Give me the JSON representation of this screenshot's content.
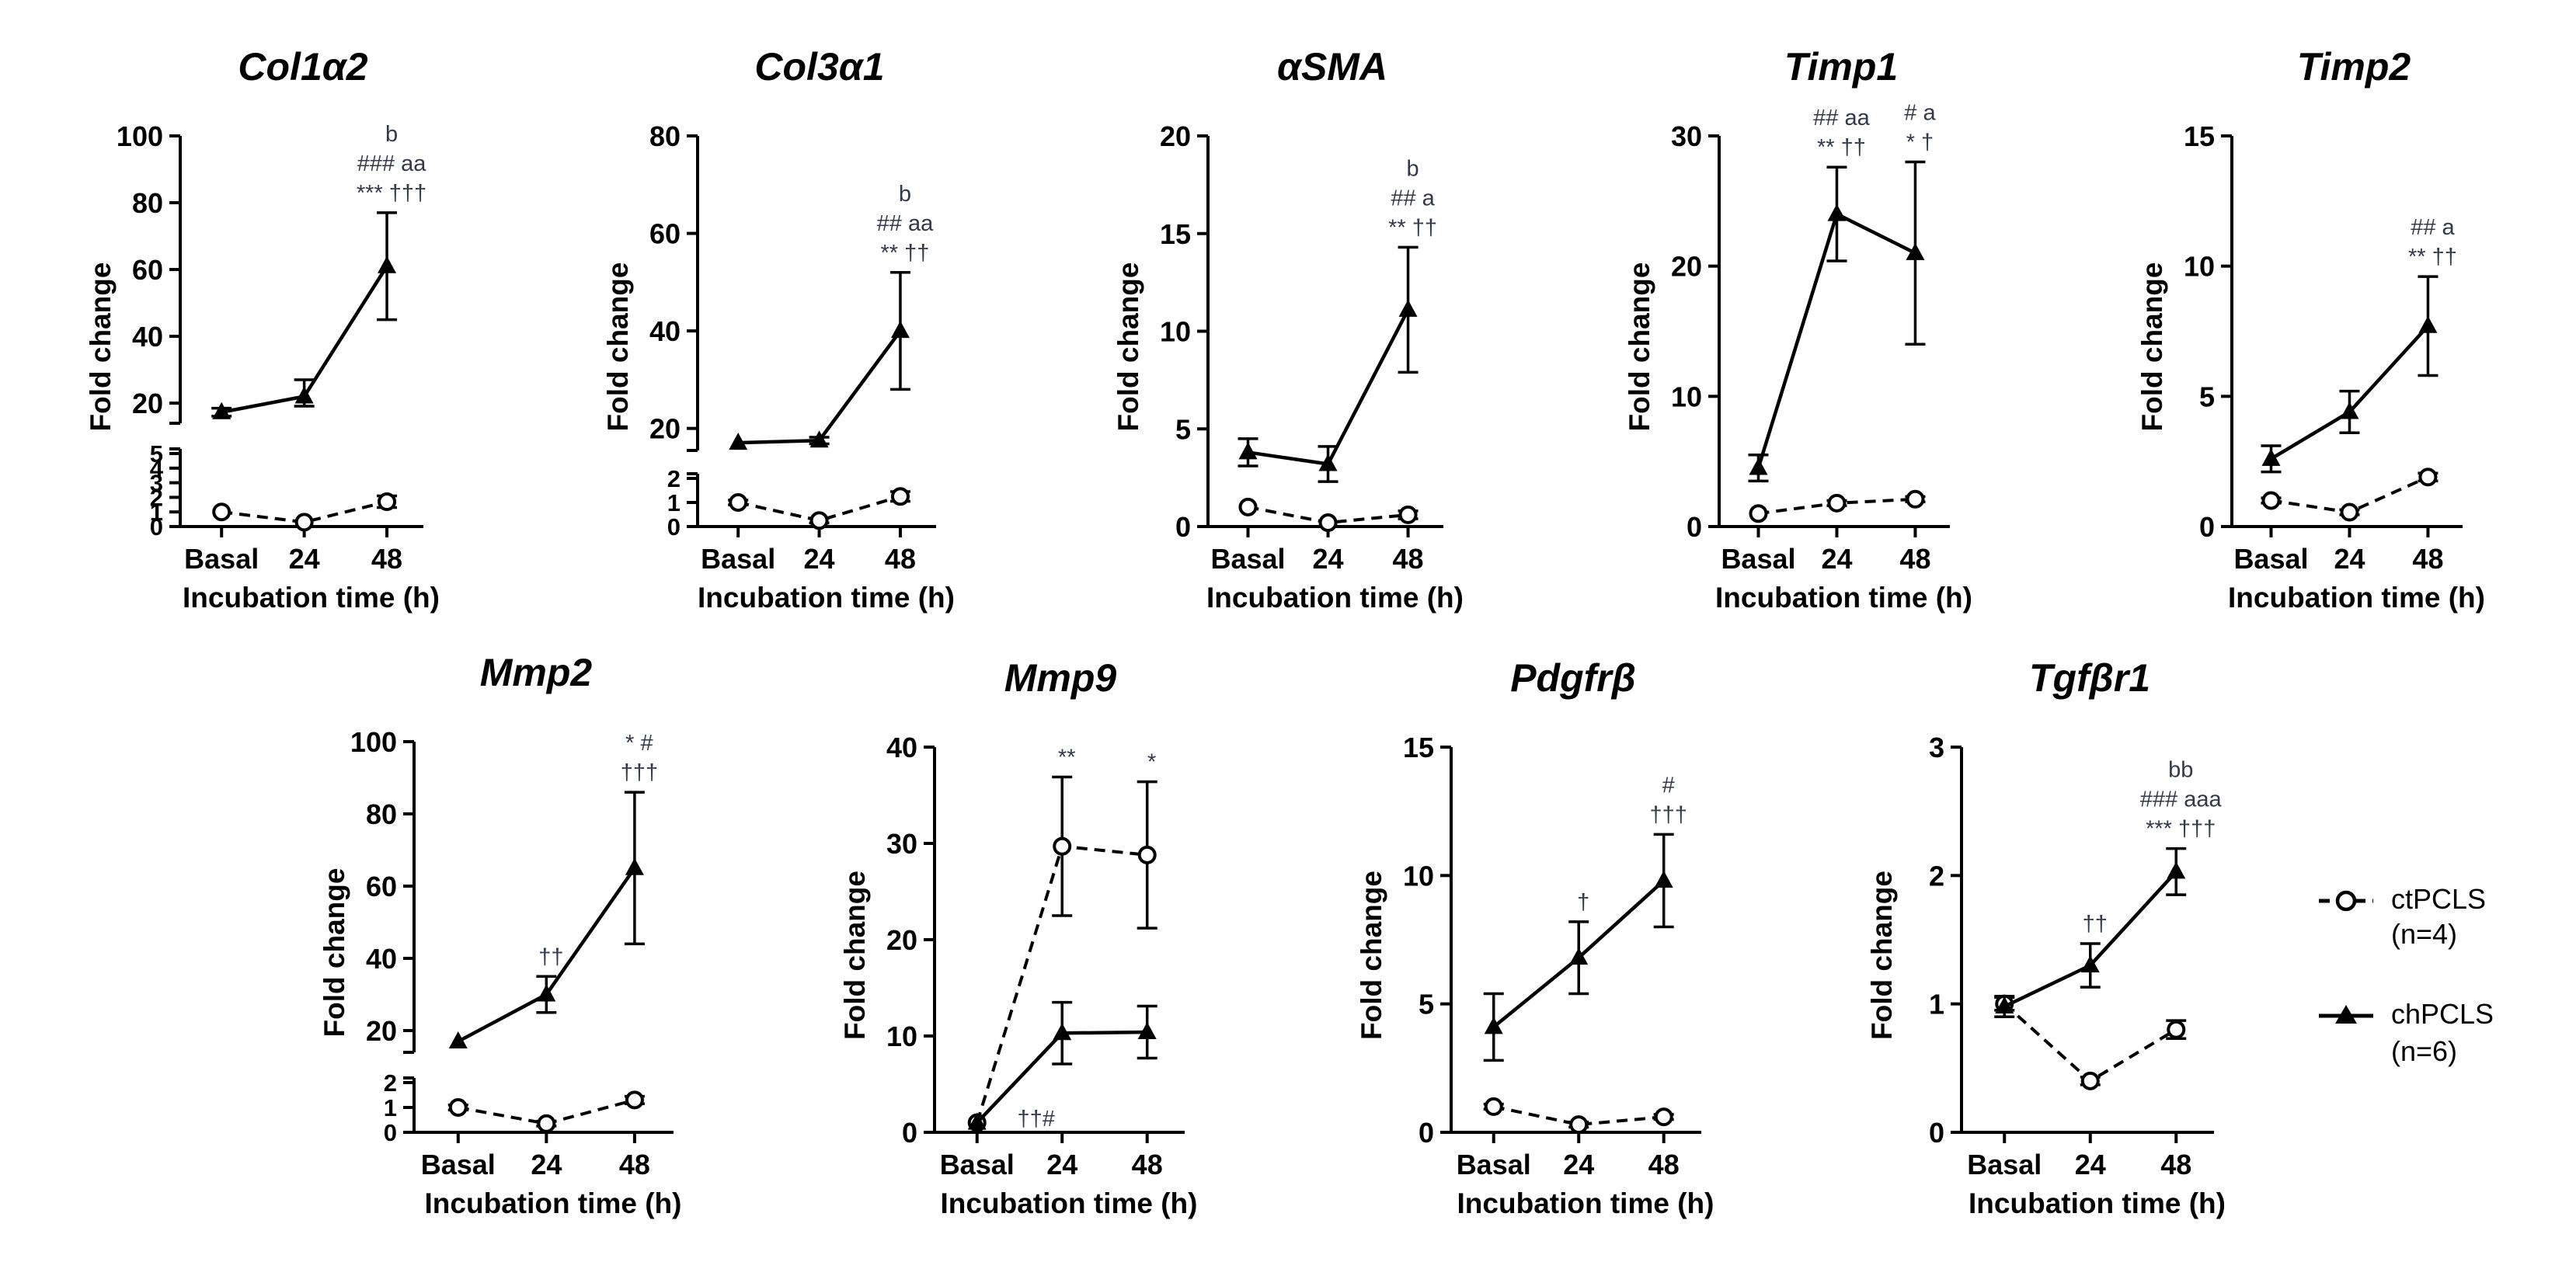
{
  "legend": {
    "ctrl_label": "ctPCLS",
    "ctrl_n": "(n=4)",
    "chal_label": "chPCLS",
    "chal_n": "(n=6)"
  },
  "colors": {
    "line": "#000000",
    "background": "#ffffff",
    "significance_text": "#33384a"
  },
  "chart_data": [
    {
      "type": "line",
      "title": "Col1α2",
      "xlabel": "Incubation time (h)",
      "ylabel": "Fold change",
      "categories": [
        "Basal",
        "24",
        "48"
      ],
      "broken_axis": true,
      "upper_ticks": [
        "20",
        "40",
        "60",
        "80",
        "100"
      ],
      "lower_ticks": [
        "0",
        "1",
        "2",
        "3",
        "4",
        "5"
      ],
      "series": [
        {
          "name": "ctPCLS",
          "values": [
            1.0,
            0.3,
            1.7
          ],
          "errors": [
            0.1,
            0.1,
            0.4
          ]
        },
        {
          "name": "chPCLS",
          "values": [
            11,
            22,
            61
          ],
          "errors": [
            4,
            5,
            16
          ]
        }
      ],
      "annotations": [
        {
          "category": "48",
          "lines": [
            "b",
            "### aa",
            "*** †††"
          ]
        }
      ]
    },
    {
      "type": "line",
      "title": "Col3α1",
      "xlabel": "Incubation time (h)",
      "ylabel": "Fold change",
      "categories": [
        "Basal",
        "24",
        "48"
      ],
      "broken_axis": true,
      "upper_ticks": [
        "20",
        "40",
        "60",
        "80"
      ],
      "lower_ticks": [
        "0",
        "1",
        "2"
      ],
      "series": [
        {
          "name": "ctPCLS",
          "values": [
            1.0,
            0.25,
            1.25
          ],
          "errors": [
            0.1,
            0.1,
            0.2
          ]
        },
        {
          "name": "chPCLS",
          "values": [
            7,
            9,
            40
          ],
          "errors": [
            2,
            3,
            12
          ]
        }
      ],
      "annotations": [
        {
          "category": "48",
          "lines": [
            "b",
            "## aa",
            "** ††"
          ]
        }
      ]
    },
    {
      "type": "line",
      "title": "αSMA",
      "xlabel": "Incubation time (h)",
      "ylabel": "Fold change",
      "categories": [
        "Basal",
        "24",
        "48"
      ],
      "broken_axis": false,
      "ylim": [
        0,
        20
      ],
      "ticks": [
        "0",
        "5",
        "10",
        "15",
        "20"
      ],
      "series": [
        {
          "name": "ctPCLS",
          "values": [
            1.0,
            0.2,
            0.6
          ],
          "errors": [
            0.1,
            0.1,
            0.2
          ]
        },
        {
          "name": "chPCLS",
          "values": [
            3.8,
            3.2,
            11.1
          ],
          "errors": [
            0.7,
            0.9,
            3.2
          ]
        }
      ],
      "annotations": [
        {
          "category": "48",
          "lines": [
            "b",
            "## a",
            "** ††"
          ]
        }
      ]
    },
    {
      "type": "line",
      "title": "Timp1",
      "xlabel": "Incubation time (h)",
      "ylabel": "Fold change",
      "categories": [
        "Basal",
        "24",
        "48"
      ],
      "broken_axis": false,
      "ylim": [
        0,
        30
      ],
      "ticks": [
        "0",
        "10",
        "20",
        "30"
      ],
      "series": [
        {
          "name": "ctPCLS",
          "values": [
            1.0,
            1.8,
            2.1
          ],
          "errors": [
            0.1,
            0.2,
            0.2
          ]
        },
        {
          "name": "chPCLS",
          "values": [
            4.5,
            24,
            21
          ],
          "errors": [
            1.0,
            3.6,
            7.0
          ]
        }
      ],
      "annotations": [
        {
          "category": "24",
          "lines": [
            "## aa",
            "** ††"
          ]
        },
        {
          "category": "48",
          "lines": [
            "# a",
            "* †"
          ]
        }
      ]
    },
    {
      "type": "line",
      "title": "Timp2",
      "xlabel": "Incubation time (h)",
      "ylabel": "Fold change",
      "categories": [
        "Basal",
        "24",
        "48"
      ],
      "broken_axis": false,
      "ylim": [
        0,
        15
      ],
      "ticks": [
        "0",
        "5",
        "10",
        "15"
      ],
      "series": [
        {
          "name": "ctPCLS",
          "values": [
            1.0,
            0.55,
            1.9
          ],
          "errors": [
            0.1,
            0.1,
            0.15
          ]
        },
        {
          "name": "chPCLS",
          "values": [
            2.6,
            4.4,
            7.7
          ],
          "errors": [
            0.5,
            0.8,
            1.9
          ]
        }
      ],
      "annotations": [
        {
          "category": "48",
          "lines": [
            "## a",
            "** ††"
          ]
        }
      ]
    },
    {
      "type": "line",
      "title": "Mmp2",
      "xlabel": "Incubation time (h)",
      "ylabel": "Fold change",
      "categories": [
        "Basal",
        "24",
        "48"
      ],
      "broken_axis": true,
      "upper_ticks": [
        "20",
        "40",
        "60",
        "80",
        "100"
      ],
      "lower_ticks": [
        "0",
        "1",
        "2"
      ],
      "series": [
        {
          "name": "ctPCLS",
          "values": [
            1.0,
            0.35,
            1.3
          ],
          "errors": [
            0.1,
            0.1,
            0.15
          ]
        },
        {
          "name": "chPCLS",
          "values": [
            10,
            30,
            65
          ],
          "errors": [
            2,
            5,
            21
          ]
        }
      ],
      "annotations": [
        {
          "category": "24",
          "lines": [
            "††"
          ]
        },
        {
          "category": "48",
          "lines": [
            "* #",
            "†††"
          ]
        }
      ]
    },
    {
      "type": "line",
      "title": "Mmp9",
      "xlabel": "Incubation time (h)",
      "ylabel": "Fold change",
      "categories": [
        "Basal",
        "24",
        "48"
      ],
      "broken_axis": false,
      "ylim": [
        0,
        40
      ],
      "ticks": [
        "0",
        "10",
        "20",
        "30",
        "40"
      ],
      "series": [
        {
          "name": "ctPCLS",
          "values": [
            1.0,
            29.7,
            28.8
          ],
          "errors": [
            0.2,
            7.2,
            7.6
          ]
        },
        {
          "name": "chPCLS",
          "values": [
            1.0,
            10.3,
            10.4
          ],
          "errors": [
            0.2,
            3.2,
            2.7
          ]
        }
      ],
      "annotations": [
        {
          "category": "24",
          "lines": [
            "**"
          ]
        },
        {
          "category": "48",
          "lines": [
            "*"
          ]
        },
        {
          "category": "Basal",
          "lines": [
            "††#"
          ]
        }
      ]
    },
    {
      "type": "line",
      "title": "Pdgfrβ",
      "xlabel": "Incubation time (h)",
      "ylabel": "Fold change",
      "categories": [
        "Basal",
        "24",
        "48"
      ],
      "broken_axis": false,
      "ylim": [
        0,
        15
      ],
      "ticks": [
        "0",
        "5",
        "10",
        "15"
      ],
      "series": [
        {
          "name": "ctPCLS",
          "values": [
            1.0,
            0.3,
            0.6
          ],
          "errors": [
            0.1,
            0.1,
            0.1
          ]
        },
        {
          "name": "chPCLS",
          "values": [
            4.1,
            6.8,
            9.8
          ],
          "errors": [
            1.3,
            1.4,
            1.8
          ]
        }
      ],
      "annotations": [
        {
          "category": "24",
          "lines": [
            "†"
          ]
        },
        {
          "category": "48",
          "lines": [
            "#",
            "†††"
          ]
        }
      ]
    },
    {
      "type": "line",
      "title": "Tgfβr1",
      "xlabel": "Incubation time (h)",
      "ylabel": "Fold change",
      "categories": [
        "Basal",
        "24",
        "48"
      ],
      "broken_axis": false,
      "ylim": [
        0,
        3
      ],
      "ticks": [
        "0",
        "1",
        "2",
        "3"
      ],
      "series": [
        {
          "name": "ctPCLS",
          "values": [
            1.0,
            0.4,
            0.8
          ],
          "errors": [
            0.05,
            0.03,
            0.07
          ]
        },
        {
          "name": "chPCLS",
          "values": [
            0.98,
            1.3,
            2.03
          ],
          "errors": [
            0.08,
            0.17,
            0.18
          ]
        }
      ],
      "annotations": [
        {
          "category": "24",
          "lines": [
            "††"
          ]
        },
        {
          "category": "48",
          "lines": [
            "bb",
            "### aaa",
            "*** †††"
          ]
        }
      ]
    }
  ]
}
